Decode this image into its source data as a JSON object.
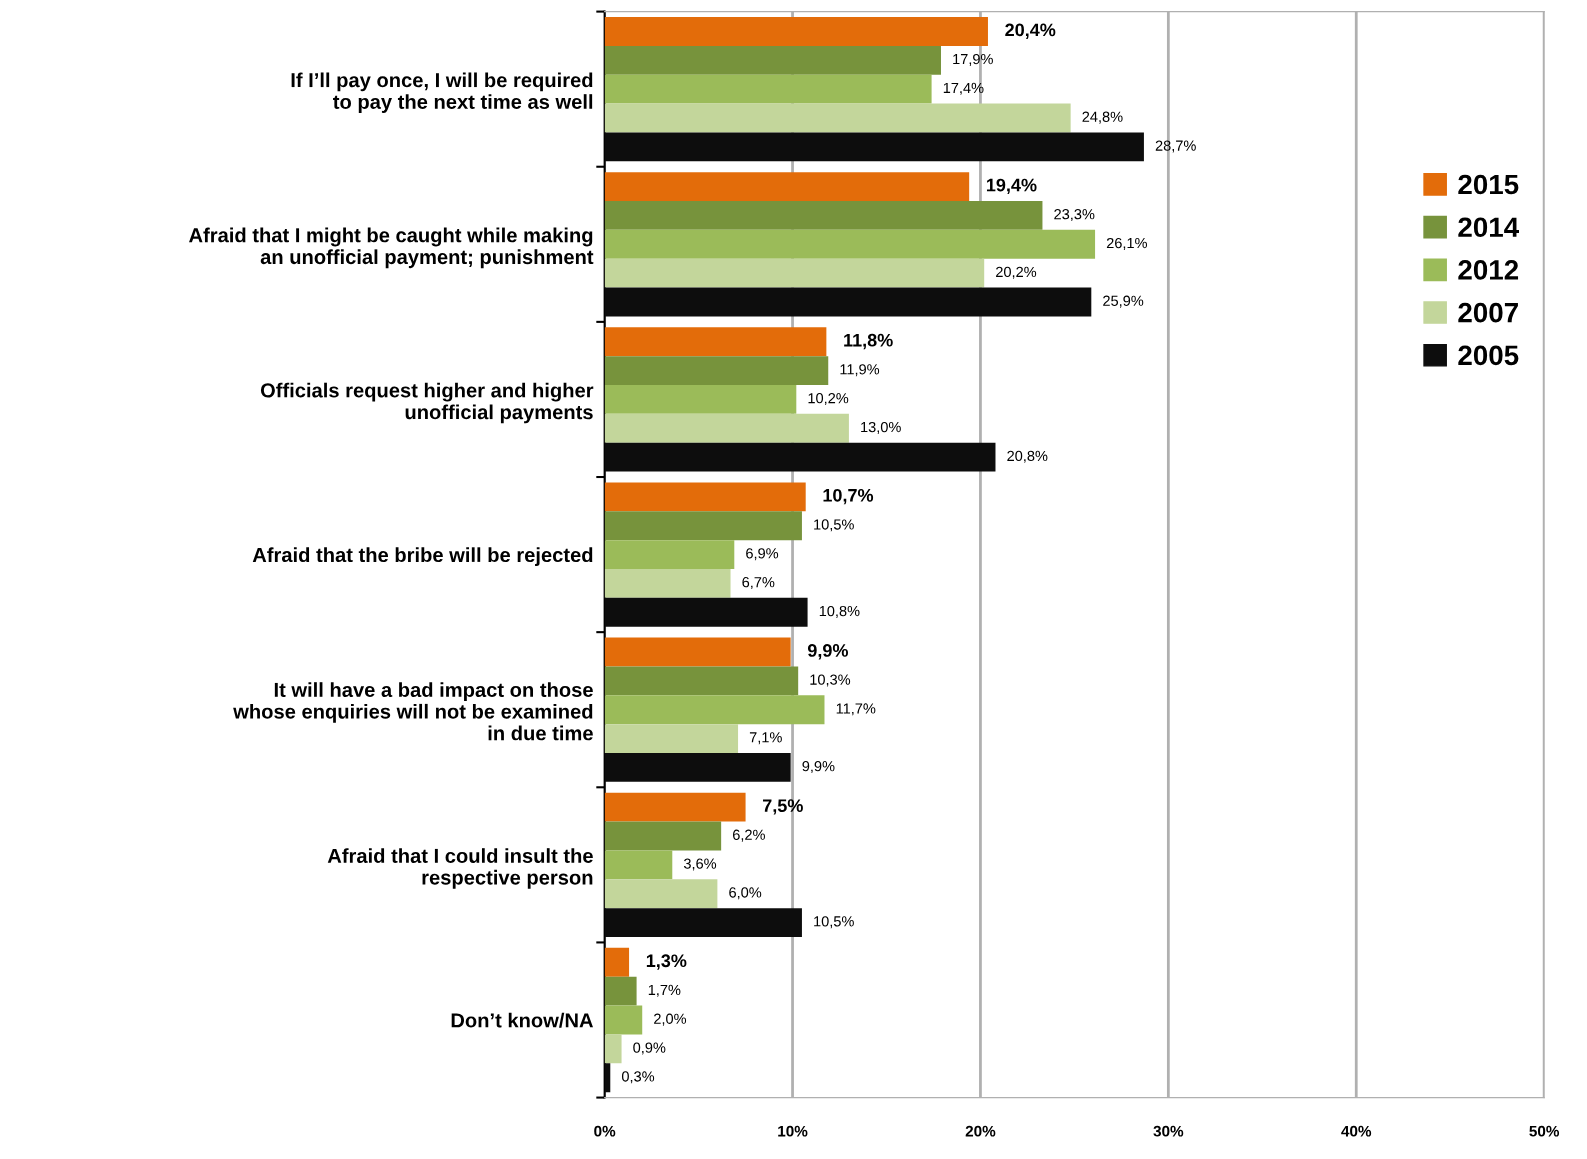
{
  "chart_data": {
    "type": "bar",
    "orientation": "horizontal",
    "categories": [
      "If I’ll pay once, I will be required\nto pay the next time as well",
      "Afraid that I might be caught while making\nan unofficial payment; punishment",
      "Officials request higher and higher\nunofficial payments",
      "Afraid that the bribe will be rejected",
      "It will have a bad impact on those\nwhose enquiries will not be examined\nin due time",
      "Afraid that I could insult the\nrespective person",
      "Don’t know/NA"
    ],
    "series": [
      {
        "name": "2015",
        "color": "#e36c0a",
        "values": [
          20.4,
          19.4,
          11.8,
          10.7,
          9.9,
          7.5,
          1.3
        ],
        "value_labels": [
          "20,4%",
          "19,4%",
          "11,8%",
          "10,7%",
          "9,9%",
          "7,5%",
          "1,3%"
        ]
      },
      {
        "name": "2014",
        "color": "#77933c",
        "values": [
          17.9,
          23.3,
          11.9,
          10.5,
          10.3,
          6.2,
          1.7
        ],
        "value_labels": [
          "17,9%",
          "23,3%",
          "11,9%",
          "10,5%",
          "10,3%",
          "6,2%",
          "1,7%"
        ]
      },
      {
        "name": "2012",
        "color": "#9bbb59",
        "values": [
          17.4,
          26.1,
          10.2,
          6.9,
          11.7,
          3.6,
          2.0
        ],
        "value_labels": [
          "17,4%",
          "26,1%",
          "10,2%",
          "6,9%",
          "11,7%",
          "3,6%",
          "2,0%"
        ]
      },
      {
        "name": "2007",
        "color": "#c3d69b",
        "values": [
          24.8,
          20.2,
          13.0,
          6.7,
          7.1,
          6.0,
          0.9
        ],
        "value_labels": [
          "24,8%",
          "20,2%",
          "13,0%",
          "6,7%",
          "7,1%",
          "6,0%",
          "0,9%"
        ]
      },
      {
        "name": "2005",
        "color": "#0d0d0d",
        "values": [
          28.7,
          25.9,
          20.8,
          10.8,
          9.9,
          10.5,
          0.3
        ],
        "value_labels": [
          "28,7%",
          "25,9%",
          "20,8%",
          "10,8%",
          "9,9%",
          "10,5%",
          "0,3%"
        ]
      }
    ],
    "xlim": [
      0,
      50
    ],
    "xticks": [
      {
        "value": 0,
        "label": "0%"
      },
      {
        "value": 10,
        "label": "10%"
      },
      {
        "value": 20,
        "label": "20%"
      },
      {
        "value": 30,
        "label": "30%"
      },
      {
        "value": 40,
        "label": "40%"
      },
      {
        "value": 50,
        "label": "50%"
      }
    ],
    "grid": "x",
    "legend": "right"
  }
}
